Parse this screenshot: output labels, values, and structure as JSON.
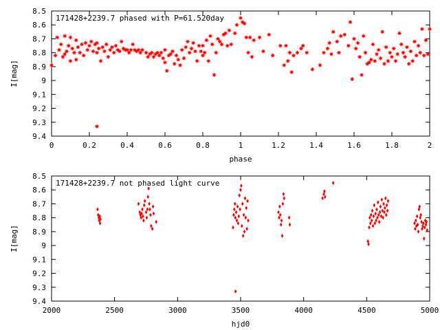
{
  "chart_data": [
    {
      "type": "scatter",
      "title": "171428+2239.7 phased with P=61.520day",
      "xlabel": "phase",
      "ylabel": "I[mag]",
      "xlim": [
        0,
        2
      ],
      "ylim": [
        8.5,
        9.4
      ],
      "y_inverted": true,
      "marker": "star",
      "color": "#ff0000",
      "xticks": [
        "0",
        "0.2",
        "0.4",
        "0.6",
        "0.8",
        "1",
        "1.2",
        "1.4",
        "1.6",
        "1.8",
        "2"
      ],
      "yticks": [
        "8.5",
        "8.6",
        "8.7",
        "8.8",
        "8.9",
        "9",
        "9.1",
        "9.2",
        "9.3",
        "9.4"
      ],
      "points": [
        [
          0.0,
          8.89
        ],
        [
          0.02,
          8.82
        ],
        [
          0.03,
          8.69
        ],
        [
          0.04,
          8.78
        ],
        [
          0.05,
          8.74
        ],
        [
          0.06,
          8.83
        ],
        [
          0.07,
          8.81
        ],
        [
          0.07,
          8.68
        ],
        [
          0.08,
          8.79
        ],
        [
          0.09,
          8.75
        ],
        [
          0.1,
          8.86
        ],
        [
          0.1,
          8.69
        ],
        [
          0.11,
          8.77
        ],
        [
          0.12,
          8.8
        ],
        [
          0.13,
          8.71
        ],
        [
          0.13,
          8.85
        ],
        [
          0.14,
          8.76
        ],
        [
          0.15,
          8.8
        ],
        [
          0.16,
          8.74
        ],
        [
          0.17,
          8.82
        ],
        [
          0.18,
          8.73
        ],
        [
          0.19,
          8.78
        ],
        [
          0.2,
          8.75
        ],
        [
          0.21,
          8.72
        ],
        [
          0.22,
          8.79
        ],
        [
          0.23,
          8.74
        ],
        [
          0.24,
          8.73
        ],
        [
          0.24,
          8.8
        ],
        [
          0.25,
          8.77
        ],
        [
          0.26,
          8.86
        ],
        [
          0.27,
          8.76
        ],
        [
          0.28,
          8.79
        ],
        [
          0.29,
          8.74
        ],
        [
          0.3,
          8.83
        ],
        [
          0.31,
          8.78
        ],
        [
          0.32,
          8.76
        ],
        [
          0.33,
          8.8
        ],
        [
          0.34,
          8.75
        ],
        [
          0.35,
          8.78
        ],
        [
          0.36,
          8.79
        ],
        [
          0.37,
          8.72
        ],
        [
          0.38,
          8.77
        ],
        [
          0.39,
          8.78
        ],
        [
          0.4,
          8.78
        ],
        [
          0.41,
          8.8
        ],
        [
          0.42,
          8.78
        ],
        [
          0.43,
          8.74
        ],
        [
          0.44,
          8.78
        ],
        [
          0.45,
          8.79
        ],
        [
          0.46,
          8.78
        ],
        [
          0.47,
          8.8
        ],
        [
          0.48,
          8.78
        ],
        [
          0.5,
          8.8
        ],
        [
          0.51,
          8.83
        ],
        [
          0.52,
          8.81
        ],
        [
          0.53,
          8.8
        ],
        [
          0.54,
          8.83
        ],
        [
          0.55,
          8.81
        ],
        [
          0.56,
          8.8
        ],
        [
          0.57,
          8.82
        ],
        [
          0.58,
          8.8
        ],
        [
          0.59,
          8.84
        ],
        [
          0.6,
          8.87
        ],
        [
          0.6,
          8.78
        ],
        [
          0.61,
          8.93
        ],
        [
          0.62,
          8.82
        ],
        [
          0.63,
          8.81
        ],
        [
          0.64,
          8.79
        ],
        [
          0.65,
          8.88
        ],
        [
          0.66,
          8.82
        ],
        [
          0.67,
          8.85
        ],
        [
          0.68,
          8.89
        ],
        [
          0.69,
          8.78
        ],
        [
          0.7,
          8.84
        ],
        [
          0.71,
          8.76
        ],
        [
          0.72,
          8.72
        ],
        [
          0.73,
          8.8
        ],
        [
          0.74,
          8.77
        ],
        [
          0.75,
          8.73
        ],
        [
          0.76,
          8.79
        ],
        [
          0.77,
          8.86
        ],
        [
          0.78,
          8.75
        ],
        [
          0.79,
          8.79
        ],
        [
          0.8,
          8.75
        ],
        [
          0.8,
          8.82
        ],
        [
          0.81,
          8.8
        ],
        [
          0.82,
          8.71
        ],
        [
          0.83,
          8.86
        ],
        [
          0.84,
          8.68
        ],
        [
          0.85,
          8.74
        ],
        [
          0.86,
          8.96
        ],
        [
          0.87,
          8.8
        ],
        [
          0.88,
          8.7
        ],
        [
          0.89,
          8.72
        ],
        [
          0.9,
          8.74
        ],
        [
          0.91,
          8.67
        ],
        [
          0.92,
          8.66
        ],
        [
          0.93,
          8.75
        ],
        [
          0.94,
          8.64
        ],
        [
          0.95,
          8.74
        ],
        [
          0.97,
          8.66
        ],
        [
          0.98,
          8.6
        ],
        [
          1.0,
          8.55
        ],
        [
          1.01,
          8.58
        ],
        [
          1.02,
          8.59
        ],
        [
          1.03,
          8.69
        ],
        [
          1.04,
          8.8
        ],
        [
          1.05,
          8.69
        ],
        [
          1.06,
          8.83
        ],
        [
          1.07,
          8.71
        ],
        [
          1.1,
          8.69
        ],
        [
          1.12,
          8.79
        ],
        [
          1.15,
          8.67
        ],
        [
          1.17,
          8.82
        ],
        [
          1.21,
          8.75
        ],
        [
          1.23,
          8.89
        ],
        [
          1.24,
          8.75
        ],
        [
          1.25,
          8.86
        ],
        [
          1.26,
          8.8
        ],
        [
          1.27,
          8.94
        ],
        [
          1.28,
          8.82
        ],
        [
          1.3,
          8.8
        ],
        [
          1.32,
          8.77
        ],
        [
          1.33,
          8.75
        ],
        [
          1.35,
          8.8
        ],
        [
          1.38,
          8.92
        ],
        [
          1.42,
          8.89
        ],
        [
          1.44,
          8.8
        ],
        [
          1.46,
          8.77
        ],
        [
          1.47,
          8.73
        ],
        [
          1.48,
          8.81
        ],
        [
          1.49,
          8.65
        ],
        [
          1.51,
          8.72
        ],
        [
          1.52,
          8.8
        ],
        [
          1.53,
          8.68
        ],
        [
          1.55,
          8.67
        ],
        [
          1.57,
          8.75
        ],
        [
          1.58,
          8.58
        ],
        [
          1.59,
          8.99
        ],
        [
          1.6,
          8.7
        ],
        [
          1.61,
          8.77
        ],
        [
          1.62,
          8.73
        ],
        [
          1.63,
          8.83
        ],
        [
          1.64,
          8.96
        ],
        [
          1.65,
          8.68
        ],
        [
          1.66,
          8.8
        ],
        [
          1.67,
          8.88
        ],
        [
          1.68,
          8.87
        ],
        [
          1.69,
          8.85
        ],
        [
          1.7,
          8.74
        ],
        [
          1.71,
          8.86
        ],
        [
          1.72,
          8.81
        ],
        [
          1.73,
          8.78
        ],
        [
          1.74,
          8.84
        ],
        [
          1.75,
          8.65
        ],
        [
          1.76,
          8.88
        ],
        [
          1.77,
          8.76
        ],
        [
          1.78,
          8.86
        ],
        [
          1.79,
          8.8
        ],
        [
          1.8,
          8.83
        ],
        [
          1.81,
          8.77
        ],
        [
          1.82,
          8.86
        ],
        [
          1.83,
          8.81
        ],
        [
          1.84,
          8.66
        ],
        [
          1.85,
          8.74
        ],
        [
          1.86,
          8.8
        ],
        [
          1.87,
          8.83
        ],
        [
          1.88,
          8.76
        ],
        [
          1.89,
          8.88
        ],
        [
          1.9,
          8.79
        ],
        [
          1.91,
          8.86
        ],
        [
          1.92,
          8.72
        ],
        [
          1.93,
          8.82
        ],
        [
          1.94,
          8.75
        ],
        [
          1.95,
          8.8
        ],
        [
          1.96,
          8.63
        ],
        [
          1.97,
          8.82
        ],
        [
          1.98,
          8.71
        ],
        [
          1.99,
          8.81
        ],
        [
          2.0,
          8.63
        ],
        [
          0.24,
          9.33
        ]
      ]
    },
    {
      "type": "scatter",
      "title": "171428+2239.7 not phased light curve",
      "xlabel": "hjd0",
      "ylabel": "I[mag]",
      "xlim": [
        2000,
        5000
      ],
      "ylim": [
        8.5,
        9.4
      ],
      "y_inverted": true,
      "marker": "diamond",
      "color": "#ff0000",
      "xticks": [
        "2000",
        "2500",
        "3000",
        "3500",
        "4000",
        "4500",
        "5000"
      ],
      "yticks": [
        "8.5",
        "8.6",
        "8.7",
        "8.8",
        "8.9",
        "9",
        "9.1",
        "9.2",
        "9.3",
        "9.4"
      ],
      "points": [
        [
          2365,
          8.74
        ],
        [
          2370,
          8.78
        ],
        [
          2375,
          8.8
        ],
        [
          2378,
          8.82
        ],
        [
          2382,
          8.79
        ],
        [
          2385,
          8.84
        ],
        [
          2388,
          8.81
        ],
        [
          2690,
          8.7
        ],
        [
          2700,
          8.76
        ],
        [
          2705,
          8.78
        ],
        [
          2710,
          8.8
        ],
        [
          2715,
          8.77
        ],
        [
          2720,
          8.74
        ],
        [
          2725,
          8.79
        ],
        [
          2730,
          8.82
        ],
        [
          2735,
          8.71
        ],
        [
          2740,
          8.68
        ],
        [
          2750,
          8.76
        ],
        [
          2755,
          8.8
        ],
        [
          2760,
          8.74
        ],
        [
          2765,
          8.65
        ],
        [
          2770,
          8.59
        ],
        [
          2775,
          8.7
        ],
        [
          2780,
          8.74
        ],
        [
          2785,
          8.78
        ],
        [
          2790,
          8.86
        ],
        [
          2800,
          8.88
        ],
        [
          2805,
          8.72
        ],
        [
          2810,
          8.77
        ],
        [
          2830,
          8.83
        ],
        [
          3440,
          8.87
        ],
        [
          3445,
          8.78
        ],
        [
          3450,
          8.74
        ],
        [
          3455,
          8.7
        ],
        [
          3458,
          8.8
        ],
        [
          3460,
          9.33
        ],
        [
          3465,
          8.76
        ],
        [
          3470,
          8.82
        ],
        [
          3475,
          8.72
        ],
        [
          3480,
          8.84
        ],
        [
          3485,
          8.79
        ],
        [
          3490,
          8.64
        ],
        [
          3495,
          8.74
        ],
        [
          3500,
          8.6
        ],
        [
          3505,
          8.57
        ],
        [
          3510,
          8.86
        ],
        [
          3515,
          8.7
        ],
        [
          3520,
          8.93
        ],
        [
          3525,
          8.78
        ],
        [
          3530,
          8.9
        ],
        [
          3535,
          8.66
        ],
        [
          3540,
          8.8
        ],
        [
          3545,
          8.73
        ],
        [
          3550,
          8.88
        ],
        [
          3555,
          8.68
        ],
        [
          3560,
          8.82
        ],
        [
          3800,
          8.76
        ],
        [
          3805,
          8.8
        ],
        [
          3810,
          8.72
        ],
        [
          3815,
          8.78
        ],
        [
          3820,
          8.85
        ],
        [
          3825,
          8.82
        ],
        [
          3830,
          8.93
        ],
        [
          3835,
          8.7
        ],
        [
          3840,
          8.63
        ],
        [
          3845,
          8.66
        ],
        [
          3885,
          8.8
        ],
        [
          3890,
          8.85
        ],
        [
          4150,
          8.66
        ],
        [
          4160,
          8.63
        ],
        [
          4165,
          8.61
        ],
        [
          4170,
          8.65
        ],
        [
          4235,
          8.55
        ],
        [
          4510,
          8.97
        ],
        [
          4515,
          8.99
        ],
        [
          4520,
          8.87
        ],
        [
          4525,
          8.8
        ],
        [
          4530,
          8.84
        ],
        [
          4535,
          8.78
        ],
        [
          4540,
          8.82
        ],
        [
          4545,
          8.75
        ],
        [
          4550,
          8.86
        ],
        [
          4555,
          8.79
        ],
        [
          4560,
          8.71
        ],
        [
          4565,
          8.84
        ],
        [
          4570,
          8.77
        ],
        [
          4575,
          8.82
        ],
        [
          4580,
          8.74
        ],
        [
          4585,
          8.8
        ],
        [
          4590,
          8.69
        ],
        [
          4595,
          8.78
        ],
        [
          4600,
          8.83
        ],
        [
          4605,
          8.76
        ],
        [
          4610,
          8.72
        ],
        [
          4615,
          8.79
        ],
        [
          4620,
          8.67
        ],
        [
          4625,
          8.75
        ],
        [
          4630,
          8.8
        ],
        [
          4635,
          8.7
        ],
        [
          4640,
          8.76
        ],
        [
          4645,
          8.73
        ],
        [
          4650,
          8.66
        ],
        [
          4655,
          8.78
        ],
        [
          4660,
          8.71
        ],
        [
          4665,
          8.75
        ],
        [
          4670,
          8.68
        ],
        [
          4880,
          8.84
        ],
        [
          4885,
          8.88
        ],
        [
          4890,
          8.82
        ],
        [
          4895,
          8.86
        ],
        [
          4900,
          8.79
        ],
        [
          4905,
          8.85
        ],
        [
          4910,
          8.9
        ],
        [
          4915,
          8.74
        ],
        [
          4920,
          8.72
        ],
        [
          4925,
          8.8
        ],
        [
          4930,
          8.78
        ],
        [
          4935,
          8.83
        ],
        [
          4940,
          8.88
        ],
        [
          4945,
          8.86
        ],
        [
          4950,
          8.84
        ],
        [
          4955,
          8.95
        ],
        [
          4960,
          8.87
        ],
        [
          4965,
          8.82
        ],
        [
          4970,
          8.85
        ],
        [
          4975,
          8.83
        ],
        [
          4980,
          8.89
        ]
      ]
    }
  ]
}
